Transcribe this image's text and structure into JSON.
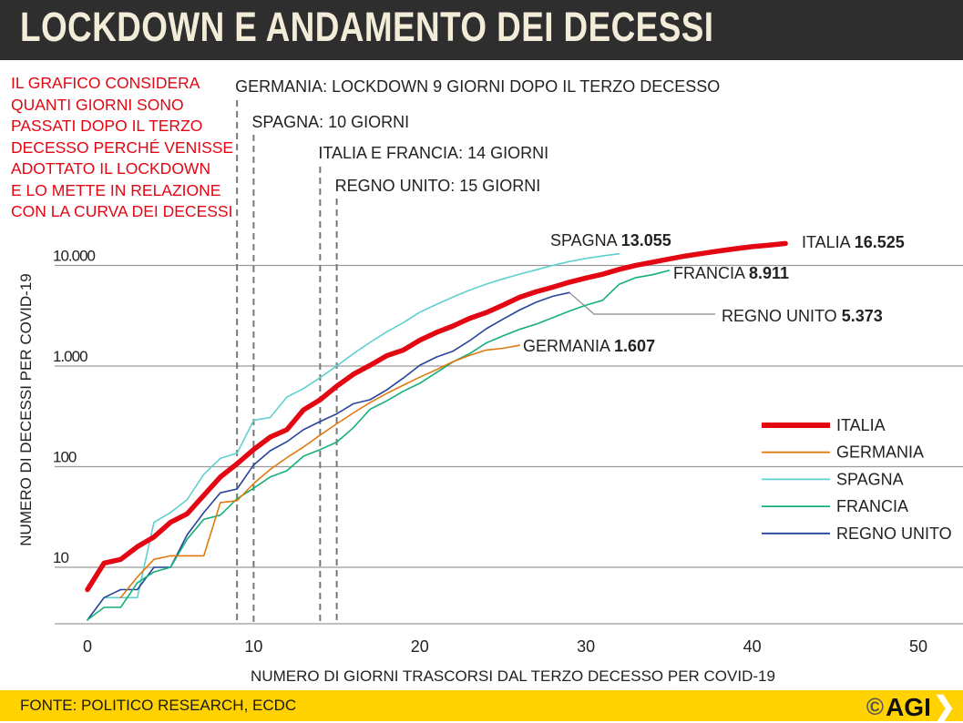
{
  "header": {
    "title": "LOCKDOWN E ANDAMENTO DEI DECESSI"
  },
  "note": "IL GRAFICO CONSIDERA\nQUANTI GIORNI SONO\nPASSATI DOPO IL TERZO\nDECESSO PERCHÉ VENISSE\nADOTTATO IL LOCKDOWN\nE LO METTE IN RELAZIONE\nCON LA CURVA DEI DECESSI",
  "footer": {
    "source": "FONTE: POLITICO RESEARCH, ECDC",
    "logo": "AGI",
    "logo_mark": "©",
    "logo_arrow": "❯"
  },
  "colors": {
    "italia": "#e30613",
    "germania": "#e07a10",
    "spagna": "#5fd0cf",
    "francia": "#14b07a",
    "regno_unito": "#26449a",
    "grid": "#9a9a9a",
    "dash": "#777777"
  },
  "chart_data": {
    "type": "line",
    "title": "LOCKDOWN E ANDAMENTO DEI DECESSI",
    "xlabel": "NUMERO DI GIORNI TRASCORSI DAL TERZO DECESSO PER COVID-19",
    "ylabel": "NUMERO DI DECESSI PER COVID-19",
    "yscale": "log",
    "xlim": [
      0,
      50
    ],
    "ylim": [
      2.75,
      20000
    ],
    "x_ticks": [
      0,
      10,
      20,
      30,
      40,
      50
    ],
    "x_tick_labels": [
      "0",
      "10",
      "20",
      "30",
      "40",
      "50"
    ],
    "y_ticks": [
      10,
      100,
      1000,
      10000
    ],
    "y_tick_labels": [
      "10",
      "100",
      "1.000",
      "10.000"
    ],
    "legend": {
      "position": "right",
      "entries": [
        "ITALIA",
        "GERMANIA",
        "SPAGNA",
        "FRANCIA",
        "REGNO UNITO"
      ]
    },
    "lockdowns": [
      {
        "day": 9,
        "label": "GERMANIA: LOCKDOWN 9 GIORNI DOPO IL TERZO DECESSO"
      },
      {
        "day": 10,
        "label": "SPAGNA: 10 GIORNI"
      },
      {
        "day": 14,
        "label": "ITALIA E FRANCIA: 14 GIORNI"
      },
      {
        "day": 15,
        "label": "REGNO UNITO: 15 GIORNI"
      }
    ],
    "series": [
      {
        "key": "italia",
        "name": "ITALIA",
        "end_label": "ITALIA",
        "end_value": "16.525",
        "start": 0,
        "values": [
          6,
          11,
          12,
          16,
          20,
          28,
          34,
          52,
          79,
          107,
          148,
          197,
          233,
          366,
          463,
          631,
          827,
          1016,
          1266,
          1441,
          1809,
          2158,
          2503,
          2978,
          3405,
          4032,
          4825,
          5476,
          6077,
          6820,
          7503,
          8165,
          9134,
          10023,
          10779,
          11591,
          12428,
          13155,
          13915,
          14681,
          15362,
          15887,
          16525
        ]
      },
      {
        "key": "germania",
        "name": "GERMANIA",
        "end_label": "GERMANIA",
        "end_value": "1.607",
        "start": 2,
        "values": [
          5,
          8,
          12,
          13,
          13,
          13,
          44,
          46,
          68,
          94,
          123,
          157,
          206,
          267,
          342,
          433,
          533,
          645,
          775,
          920,
          1107,
          1275,
          1444,
          1500,
          1607
        ]
      },
      {
        "key": "spagna",
        "name": "SPAGNA",
        "end_label": "SPAGNA",
        "end_value": "13.055",
        "start": 0,
        "values": [
          3,
          5,
          5,
          5,
          28,
          35,
          47,
          84,
          121,
          136,
          289,
          309,
          491,
          598,
          767,
          1002,
          1326,
          1720,
          2182,
          2696,
          3434,
          4089,
          4858,
          5690,
          6528,
          7340,
          8189,
          9053,
          10003,
          10935,
          11744,
          12418,
          13055
        ]
      },
      {
        "key": "francia",
        "name": "FRANCIA",
        "end_label": "FRANCIA",
        "end_value": "8.911",
        "start": 0,
        "values": [
          3,
          4,
          4,
          7,
          9,
          10,
          19,
          30,
          33,
          48,
          61,
          79,
          91,
          127,
          148,
          175,
          244,
          372,
          450,
          562,
          674,
          860,
          1100,
          1331,
          1696,
          1995,
          2314,
          2606,
          3024,
          3523,
          4032,
          4503,
          6507,
          7560,
          8078,
          8911
        ]
      },
      {
        "key": "regno_unito",
        "name": "REGNO UNITO",
        "end_label": "REGNO UNITO",
        "end_value": "5.373",
        "start": 0,
        "values": [
          3,
          5,
          6,
          6,
          10,
          10,
          21,
          35,
          55,
          60,
          104,
          144,
          177,
          233,
          281,
          335,
          422,
          463,
          578,
          759,
          1019,
          1228,
          1408,
          1789,
          2352,
          2921,
          3605,
          4313,
          4934,
          5373
        ]
      }
    ]
  }
}
